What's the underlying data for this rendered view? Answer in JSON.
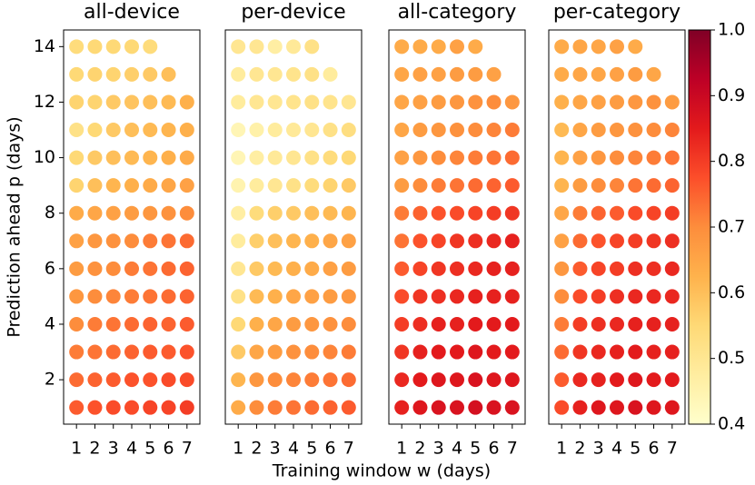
{
  "colormap": [
    "#ffffcc",
    "#ffeda0",
    "#fed976",
    "#feb24c",
    "#fd8d3c",
    "#fc4e2a",
    "#e31a1c",
    "#bd0026",
    "#800026"
  ],
  "colorbar": {
    "lim": [
      0.4,
      1.0
    ],
    "ticks": [
      0.4,
      0.5,
      0.6,
      0.7,
      0.8,
      0.9,
      {
        "value": 1,
        "label": "1.0"
      }
    ]
  },
  "xlabel": "Training window w (days)",
  "ylabel": "Prediction ahead p (days)",
  "chart_data": [
    {
      "type": "dotmatrix",
      "title": "all-device",
      "x": [
        1,
        2,
        3,
        4,
        5,
        6,
        7
      ],
      "y": [
        1,
        2,
        3,
        4,
        5,
        6,
        7,
        8,
        9,
        10,
        11,
        12,
        13,
        14
      ],
      "xlim": [
        0.3,
        7.7
      ],
      "ylim": [
        0.4,
        14.6
      ],
      "xticks": [
        1,
        2,
        3,
        4,
        5,
        6,
        7
      ],
      "yticks": [
        2,
        4,
        6,
        8,
        10,
        12,
        14
      ],
      "values": [
        [
          0.76,
          0.77,
          0.78,
          0.78,
          0.79,
          0.79,
          0.8
        ],
        [
          0.74,
          0.75,
          0.76,
          0.77,
          0.77,
          0.78,
          0.78
        ],
        [
          0.72,
          0.73,
          0.74,
          0.75,
          0.76,
          0.76,
          0.77
        ],
        [
          0.7,
          0.72,
          0.73,
          0.74,
          0.75,
          0.75,
          0.76
        ],
        [
          0.68,
          0.7,
          0.71,
          0.72,
          0.73,
          0.74,
          0.75
        ],
        [
          0.67,
          0.69,
          0.7,
          0.72,
          0.73,
          0.74,
          0.75
        ],
        [
          0.66,
          0.68,
          0.69,
          0.7,
          0.72,
          0.73,
          0.74
        ],
        [
          0.64,
          0.65,
          0.66,
          0.67,
          0.68,
          0.69,
          0.7
        ],
        [
          0.56,
          0.6,
          0.62,
          0.63,
          0.64,
          0.65,
          0.66
        ],
        [
          0.55,
          0.58,
          0.6,
          0.61,
          0.62,
          0.63,
          0.64
        ],
        [
          0.52,
          0.55,
          0.58,
          0.6,
          0.61,
          0.62,
          0.63
        ],
        [
          0.56,
          0.56,
          0.58,
          0.59,
          0.6,
          0.61,
          0.63
        ],
        [
          0.55,
          0.56,
          0.56,
          0.57,
          0.58,
          0.6
        ],
        [
          0.54,
          0.55,
          0.55,
          0.55,
          0.54
        ]
      ]
    },
    {
      "type": "dotmatrix",
      "title": "per-device",
      "x": [
        1,
        2,
        3,
        4,
        5,
        6,
        7
      ],
      "y": [
        1,
        2,
        3,
        4,
        5,
        6,
        7,
        8,
        9,
        10,
        11,
        12,
        13,
        14
      ],
      "xlim": [
        0.3,
        7.7
      ],
      "ylim": [
        0.4,
        14.6
      ],
      "xticks": [
        1,
        2,
        3,
        4,
        5,
        6,
        7
      ],
      "values": [
        [
          0.64,
          0.7,
          0.72,
          0.73,
          0.74,
          0.75,
          0.76
        ],
        [
          0.62,
          0.68,
          0.7,
          0.71,
          0.72,
          0.73,
          0.74
        ],
        [
          0.58,
          0.65,
          0.67,
          0.69,
          0.7,
          0.71,
          0.72
        ],
        [
          0.55,
          0.63,
          0.65,
          0.67,
          0.68,
          0.69,
          0.7
        ],
        [
          0.52,
          0.61,
          0.63,
          0.65,
          0.66,
          0.67,
          0.68
        ],
        [
          0.5,
          0.58,
          0.61,
          0.63,
          0.64,
          0.66,
          0.67
        ],
        [
          0.48,
          0.57,
          0.6,
          0.62,
          0.63,
          0.65,
          0.66
        ],
        [
          0.47,
          0.54,
          0.57,
          0.58,
          0.6,
          0.61,
          0.62
        ],
        [
          0.45,
          0.48,
          0.5,
          0.52,
          0.54,
          0.56,
          0.58
        ],
        [
          0.44,
          0.47,
          0.49,
          0.5,
          0.52,
          0.54,
          0.55
        ],
        [
          0.44,
          0.46,
          0.48,
          0.49,
          0.5,
          0.52,
          0.53
        ],
        [
          0.48,
          0.5,
          0.5,
          0.51,
          0.52,
          0.51,
          0.5
        ],
        [
          0.48,
          0.5,
          0.5,
          0.51,
          0.52,
          0.48
        ],
        [
          0.5,
          0.5,
          0.47,
          0.49,
          0.52
        ]
      ]
    },
    {
      "type": "dotmatrix",
      "title": "all-category",
      "x": [
        1,
        2,
        3,
        4,
        5,
        6,
        7
      ],
      "y": [
        1,
        2,
        3,
        4,
        5,
        6,
        7,
        8,
        9,
        10,
        11,
        12,
        13,
        14
      ],
      "xlim": [
        0.3,
        7.7
      ],
      "ylim": [
        0.4,
        14.6
      ],
      "xticks": [
        1,
        2,
        3,
        4,
        5,
        6,
        7
      ],
      "values": [
        [
          0.84,
          0.86,
          0.87,
          0.87,
          0.88,
          0.87,
          0.87
        ],
        [
          0.83,
          0.85,
          0.86,
          0.86,
          0.87,
          0.86,
          0.86
        ],
        [
          0.81,
          0.84,
          0.85,
          0.85,
          0.86,
          0.85,
          0.85
        ],
        [
          0.8,
          0.82,
          0.84,
          0.84,
          0.85,
          0.85,
          0.85
        ],
        [
          0.78,
          0.81,
          0.82,
          0.83,
          0.84,
          0.84,
          0.84
        ],
        [
          0.76,
          0.79,
          0.81,
          0.82,
          0.83,
          0.84,
          0.84
        ],
        [
          0.73,
          0.77,
          0.79,
          0.81,
          0.82,
          0.83,
          0.84
        ],
        [
          0.72,
          0.75,
          0.77,
          0.78,
          0.79,
          0.8,
          0.81
        ],
        [
          0.67,
          0.7,
          0.72,
          0.73,
          0.74,
          0.75,
          0.76
        ],
        [
          0.66,
          0.68,
          0.7,
          0.71,
          0.72,
          0.73,
          0.74
        ],
        [
          0.65,
          0.67,
          0.68,
          0.69,
          0.7,
          0.71,
          0.72
        ],
        [
          0.65,
          0.66,
          0.67,
          0.68,
          0.69,
          0.7,
          0.68
        ],
        [
          0.65,
          0.66,
          0.66,
          0.67,
          0.67,
          0.66
        ],
        [
          0.64,
          0.64,
          0.64,
          0.66,
          0.64
        ]
      ]
    },
    {
      "type": "dotmatrix",
      "title": "per-category",
      "x": [
        1,
        2,
        3,
        4,
        5,
        6,
        7
      ],
      "y": [
        1,
        2,
        3,
        4,
        5,
        6,
        7,
        8,
        9,
        10,
        11,
        12,
        13,
        14
      ],
      "xlim": [
        0.3,
        7.7
      ],
      "ylim": [
        0.4,
        14.6
      ],
      "xticks": [
        1,
        2,
        3,
        4,
        5,
        6,
        7
      ],
      "values": [
        [
          0.78,
          0.84,
          0.86,
          0.86,
          0.87,
          0.86,
          0.86
        ],
        [
          0.76,
          0.83,
          0.84,
          0.85,
          0.86,
          0.85,
          0.85
        ],
        [
          0.74,
          0.81,
          0.83,
          0.84,
          0.85,
          0.84,
          0.84
        ],
        [
          0.72,
          0.8,
          0.82,
          0.83,
          0.84,
          0.84,
          0.84
        ],
        [
          0.7,
          0.78,
          0.8,
          0.82,
          0.83,
          0.83,
          0.83
        ],
        [
          0.68,
          0.76,
          0.79,
          0.8,
          0.82,
          0.82,
          0.83
        ],
        [
          0.66,
          0.74,
          0.77,
          0.79,
          0.8,
          0.81,
          0.82
        ],
        [
          0.65,
          0.72,
          0.75,
          0.76,
          0.78,
          0.79,
          0.8
        ],
        [
          0.62,
          0.67,
          0.7,
          0.71,
          0.73,
          0.74,
          0.75
        ],
        [
          0.62,
          0.66,
          0.68,
          0.7,
          0.71,
          0.72,
          0.73
        ],
        [
          0.61,
          0.65,
          0.67,
          0.68,
          0.69,
          0.7,
          0.71
        ],
        [
          0.63,
          0.65,
          0.66,
          0.67,
          0.68,
          0.69,
          0.67
        ],
        [
          0.64,
          0.65,
          0.65,
          0.66,
          0.67,
          0.65
        ],
        [
          0.64,
          0.65,
          0.65,
          0.66,
          0.64
        ]
      ]
    }
  ]
}
